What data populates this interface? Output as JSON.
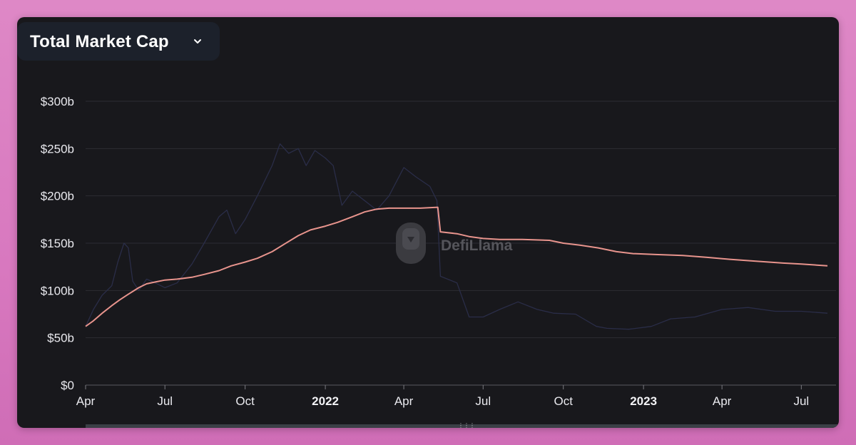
{
  "header": {
    "metric_selector_label": "Total Market Cap"
  },
  "watermark": {
    "text": "DefiLlama"
  },
  "colors": {
    "card_bg": "#18181c",
    "primary_series": "#e8948d",
    "secondary_series": "#2a2d48",
    "grid": "#2c2c33"
  },
  "chart_data": {
    "type": "line",
    "title": "Total Market Cap",
    "xlabel": "",
    "ylabel": "",
    "x_range": [
      "2021-04-01",
      "2023-07-31"
    ],
    "ylim": [
      0,
      300
    ],
    "y_unit": "b",
    "y_ticks": [
      {
        "value": 0,
        "label": "$0"
      },
      {
        "value": 50,
        "label": "$50b"
      },
      {
        "value": 100,
        "label": "$100b"
      },
      {
        "value": 150,
        "label": "$150b"
      },
      {
        "value": 200,
        "label": "$200b"
      },
      {
        "value": 250,
        "label": "$250b"
      },
      {
        "value": 300,
        "label": "$300b"
      }
    ],
    "x_ticks": [
      {
        "date": "2021-04-01",
        "label": "Apr",
        "bold": false
      },
      {
        "date": "2021-07-01",
        "label": "Jul",
        "bold": false
      },
      {
        "date": "2021-10-01",
        "label": "Oct",
        "bold": false
      },
      {
        "date": "2022-01-01",
        "label": "2022",
        "bold": true
      },
      {
        "date": "2022-04-01",
        "label": "Apr",
        "bold": false
      },
      {
        "date": "2022-07-01",
        "label": "Jul",
        "bold": false
      },
      {
        "date": "2022-10-01",
        "label": "Oct",
        "bold": false
      },
      {
        "date": "2023-01-01",
        "label": "2023",
        "bold": true
      },
      {
        "date": "2023-04-01",
        "label": "Apr",
        "bold": false
      },
      {
        "date": "2023-07-01",
        "label": "Jul",
        "bold": false
      }
    ],
    "grid": true,
    "legend": "none",
    "series": [
      {
        "color": "#e8948d",
        "points": [
          [
            "2021-04-01",
            62
          ],
          [
            "2021-04-10",
            68
          ],
          [
            "2021-04-20",
            76
          ],
          [
            "2021-05-01",
            84
          ],
          [
            "2021-05-10",
            90
          ],
          [
            "2021-05-20",
            96
          ],
          [
            "2021-06-01",
            103
          ],
          [
            "2021-06-10",
            107
          ],
          [
            "2021-06-20",
            109
          ],
          [
            "2021-07-01",
            111
          ],
          [
            "2021-07-15",
            112
          ],
          [
            "2021-08-01",
            114
          ],
          [
            "2021-08-15",
            117
          ],
          [
            "2021-09-01",
            121
          ],
          [
            "2021-09-15",
            126
          ],
          [
            "2021-10-01",
            130
          ],
          [
            "2021-10-15",
            134
          ],
          [
            "2021-11-01",
            141
          ],
          [
            "2021-11-15",
            149
          ],
          [
            "2021-12-01",
            158
          ],
          [
            "2021-12-15",
            164
          ],
          [
            "2022-01-01",
            168
          ],
          [
            "2022-01-15",
            172
          ],
          [
            "2022-02-01",
            178
          ],
          [
            "2022-02-15",
            183
          ],
          [
            "2022-03-01",
            186
          ],
          [
            "2022-03-15",
            187
          ],
          [
            "2022-04-01",
            187
          ],
          [
            "2022-04-20",
            187
          ],
          [
            "2022-05-10",
            188
          ],
          [
            "2022-05-13",
            162
          ],
          [
            "2022-06-01",
            160
          ],
          [
            "2022-06-15",
            157
          ],
          [
            "2022-07-01",
            155
          ],
          [
            "2022-07-20",
            154
          ],
          [
            "2022-08-15",
            154
          ],
          [
            "2022-09-15",
            153
          ],
          [
            "2022-10-01",
            150
          ],
          [
            "2022-10-20",
            148
          ],
          [
            "2022-11-10",
            145
          ],
          [
            "2022-12-01",
            141
          ],
          [
            "2022-12-20",
            139
          ],
          [
            "2023-01-15",
            138
          ],
          [
            "2023-02-15",
            137
          ],
          [
            "2023-03-15",
            135
          ],
          [
            "2023-04-10",
            133
          ],
          [
            "2023-05-10",
            131
          ],
          [
            "2023-06-10",
            129
          ],
          [
            "2023-07-01",
            128
          ],
          [
            "2023-07-31",
            126
          ]
        ]
      },
      {
        "color": "#2a2d48",
        "points": [
          [
            "2021-04-01",
            62
          ],
          [
            "2021-04-10",
            80
          ],
          [
            "2021-04-20",
            95
          ],
          [
            "2021-05-01",
            105
          ],
          [
            "2021-05-08",
            130
          ],
          [
            "2021-05-15",
            150
          ],
          [
            "2021-05-20",
            145
          ],
          [
            "2021-05-25",
            110
          ],
          [
            "2021-06-01",
            100
          ],
          [
            "2021-06-10",
            112
          ],
          [
            "2021-06-20",
            108
          ],
          [
            "2021-07-01",
            103
          ],
          [
            "2021-07-15",
            108
          ],
          [
            "2021-08-01",
            128
          ],
          [
            "2021-08-15",
            150
          ],
          [
            "2021-09-01",
            178
          ],
          [
            "2021-09-10",
            185
          ],
          [
            "2021-09-20",
            160
          ],
          [
            "2021-10-01",
            175
          ],
          [
            "2021-10-15",
            200
          ],
          [
            "2021-11-01",
            232
          ],
          [
            "2021-11-10",
            255
          ],
          [
            "2021-11-20",
            245
          ],
          [
            "2021-12-01",
            250
          ],
          [
            "2021-12-10",
            232
          ],
          [
            "2021-12-20",
            248
          ],
          [
            "2022-01-01",
            240
          ],
          [
            "2022-01-10",
            232
          ],
          [
            "2022-01-20",
            190
          ],
          [
            "2022-02-01",
            205
          ],
          [
            "2022-02-15",
            195
          ],
          [
            "2022-03-01",
            185
          ],
          [
            "2022-03-15",
            200
          ],
          [
            "2022-04-01",
            230
          ],
          [
            "2022-04-15",
            220
          ],
          [
            "2022-05-01",
            210
          ],
          [
            "2022-05-09",
            195
          ],
          [
            "2022-05-13",
            115
          ],
          [
            "2022-06-01",
            108
          ],
          [
            "2022-06-15",
            72
          ],
          [
            "2022-07-01",
            72
          ],
          [
            "2022-07-20",
            80
          ],
          [
            "2022-08-10",
            88
          ],
          [
            "2022-09-01",
            80
          ],
          [
            "2022-09-20",
            76
          ],
          [
            "2022-10-15",
            75
          ],
          [
            "2022-11-08",
            62
          ],
          [
            "2022-11-20",
            60
          ],
          [
            "2022-12-15",
            59
          ],
          [
            "2023-01-10",
            62
          ],
          [
            "2023-02-01",
            70
          ],
          [
            "2023-03-01",
            72
          ],
          [
            "2023-04-01",
            80
          ],
          [
            "2023-05-01",
            82
          ],
          [
            "2023-06-01",
            78
          ],
          [
            "2023-07-01",
            78
          ],
          [
            "2023-07-31",
            76
          ]
        ]
      }
    ]
  }
}
